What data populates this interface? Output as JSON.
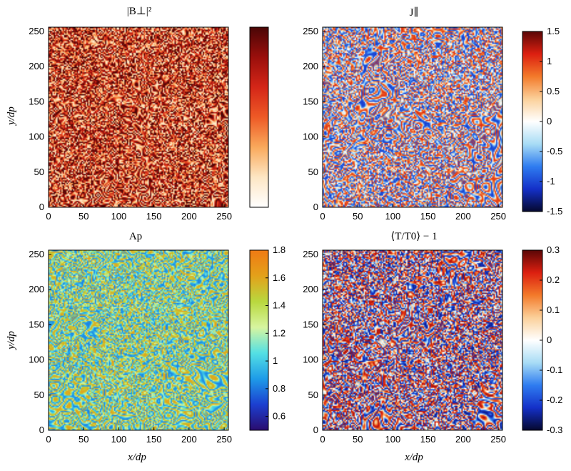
{
  "chart_data": [
    {
      "type": "heatmap",
      "title": "|B⊥|²",
      "xlabel": "",
      "ylabel": "y/dp",
      "x_ticks": [
        "0",
        "50",
        "100",
        "150",
        "200",
        "250"
      ],
      "y_ticks": [
        "0",
        "50",
        "100",
        "150",
        "200",
        "250"
      ],
      "xlim": [
        0,
        256
      ],
      "ylim": [
        0,
        256
      ],
      "colormap": [
        "#ffffff",
        "#fde6c4",
        "#f9a95c",
        "#ee5a26",
        "#d42618",
        "#9a0f0c",
        "#4a0606"
      ],
      "colorbar_ticks": [],
      "colorbar_range": [
        0,
        1
      ]
    },
    {
      "type": "heatmap",
      "title": "J∥",
      "xlabel": "",
      "ylabel": "",
      "x_ticks": [
        "0",
        "50",
        "100",
        "150",
        "200",
        "250"
      ],
      "y_ticks": [
        "0",
        "50",
        "100",
        "150",
        "200",
        "250"
      ],
      "xlim": [
        0,
        256
      ],
      "ylim": [
        0,
        256
      ],
      "colormap": [
        "#05082e",
        "#1430c8",
        "#2f7cf0",
        "#a8dcf5",
        "#ffffff",
        "#fbd09a",
        "#f37a2a",
        "#dc1f10",
        "#5a0606"
      ],
      "colorbar_ticks": [
        "1.5",
        "1",
        "0.5",
        "0",
        "-0.5",
        "-1",
        "-1.5"
      ],
      "colorbar_range": [
        -1.5,
        1.5
      ]
    },
    {
      "type": "heatmap",
      "title": "Ap",
      "xlabel": "x/dp",
      "ylabel": "y/dp",
      "x_ticks": [
        "0",
        "50",
        "100",
        "150",
        "200",
        "250"
      ],
      "y_ticks": [
        "0",
        "50",
        "100",
        "150",
        "200",
        "250"
      ],
      "xlim": [
        0,
        256
      ],
      "ylim": [
        0,
        256
      ],
      "colormap": [
        "#2a0c6e",
        "#1c3fd0",
        "#1e9be8",
        "#54e0e4",
        "#d7f5a0",
        "#b9d83e",
        "#e3a11a",
        "#f07a14"
      ],
      "colorbar_ticks": [
        "1.8",
        "1.6",
        "1.4",
        "1.2",
        "1",
        "0.8",
        "0.6"
      ],
      "colorbar_range": [
        0.5,
        1.8
      ]
    },
    {
      "type": "heatmap",
      "title": "⟨T/T0⟩ − 1",
      "xlabel": "x/dp",
      "ylabel": "",
      "x_ticks": [
        "0",
        "50",
        "100",
        "150",
        "200",
        "250"
      ],
      "y_ticks": [
        "0",
        "50",
        "100",
        "150",
        "200",
        "250"
      ],
      "xlim": [
        0,
        256
      ],
      "ylim": [
        0,
        256
      ],
      "colormap": [
        "#05082e",
        "#1430c8",
        "#2f7cf0",
        "#a8dcf5",
        "#ffffff",
        "#fbd09a",
        "#f37a2a",
        "#dc1f10",
        "#5a0606"
      ],
      "colorbar_ticks": [
        "0.3",
        "0.2",
        "0.1",
        "0",
        "-0.1",
        "-0.2",
        "-0.3"
      ],
      "colorbar_range": [
        -0.3,
        0.3
      ]
    }
  ]
}
